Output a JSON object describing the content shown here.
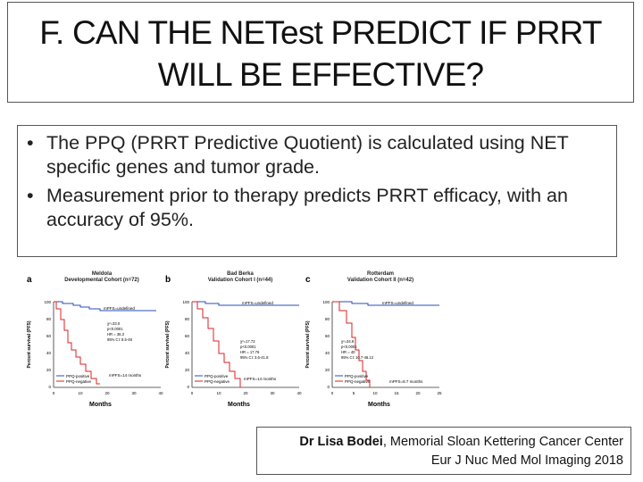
{
  "title": {
    "line1": "F. CAN THE NETest PREDICT IF PRRT",
    "line2": "WILL BE EFFECTIVE?"
  },
  "bullets": [
    {
      "text": "The PPQ (PRRT Predictive Quotient) is calculated using NET specific genes and tumor grade."
    },
    {
      "text": "Measurement prior to therapy predicts PRRT efficacy, with an accuracy of 95%."
    }
  ],
  "figures": [
    {
      "letter": "a",
      "cohort_line1": "Meldola",
      "cohort_line2": "Developmental Cohort (n=72)",
      "ylabel": "Percent survival (PFS)",
      "xlabel": "Months",
      "yticks": [
        "100",
        "80",
        "60",
        "40",
        "20",
        "0"
      ],
      "xticks": [
        "0",
        "10",
        "20",
        "30",
        "40"
      ],
      "upper_note": "mPFS=undefined",
      "lower_note": "mPFS=14 months",
      "stats": [
        "χ²=33.0",
        "p<0.0001",
        "HR = 36.3",
        "95% CI: 8.5-48"
      ],
      "legend": [
        "PPQ-positive",
        "PPQ-negative"
      ]
    },
    {
      "letter": "b",
      "cohort_line1": "Bad Berka",
      "cohort_line2": "Validation Cohort I (n=44)",
      "ylabel": "Percent survival (PFS)",
      "xlabel": "Months",
      "yticks": [
        "100",
        "80",
        "60",
        "40",
        "20",
        "0"
      ],
      "xticks": [
        "0",
        "10",
        "20",
        "30",
        "40"
      ],
      "upper_note": "mPFS=undefined",
      "lower_note": "mPFS=14 months",
      "stats": [
        "χ²=17.72",
        "p<0.0001",
        "HR = 17.76",
        "95% CI: 3.6-41.8"
      ],
      "legend": [
        "PPQ-positive",
        "PPQ-negative"
      ]
    },
    {
      "letter": "c",
      "cohort_line1": "Rotterdam",
      "cohort_line2": "Validation Cohort II (n=42)",
      "ylabel": "Percent survival (PFS)",
      "xlabel": "Months",
      "yticks": [
        "100",
        "80",
        "60",
        "40",
        "20",
        "0"
      ],
      "xticks": [
        "0",
        "5",
        "10",
        "15",
        "20",
        "25"
      ],
      "upper_note": "mPFS=undefined",
      "lower_note": "mPFS=8.7 months",
      "stats": [
        "χ²=34.9",
        "p<0.0001",
        "HR = 40",
        "95% CI: 10.7-46.12"
      ],
      "legend": [
        "PPQ-positive",
        "PPQ-negative"
      ]
    }
  ],
  "citation": {
    "author": "Dr Lisa Bodei",
    "affiliation": ", Memorial Sloan Kettering Cancer Center",
    "journal": "Eur J Nuc Med Mol Imaging 2018"
  }
}
